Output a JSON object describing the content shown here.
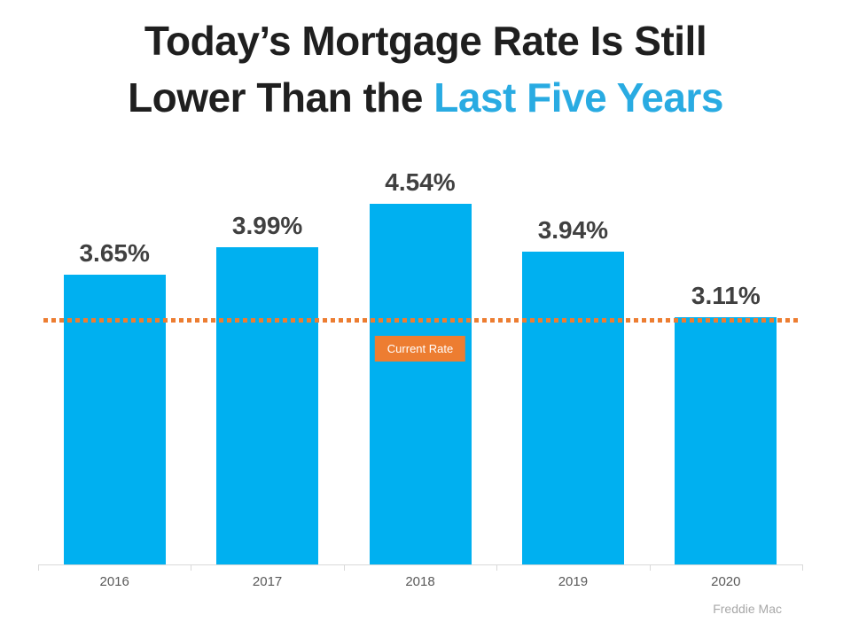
{
  "title": {
    "line1": "Today’s Mortgage Rate Is Still",
    "line2_prefix": "Lower Than the ",
    "line2_accent": "Last Five Years"
  },
  "chart_data": {
    "type": "bar",
    "title": "Today’s Mortgage Rate Is Still Lower Than the Last Five Years",
    "categories": [
      "2016",
      "2017",
      "2018",
      "2019",
      "2020"
    ],
    "values": [
      3.65,
      3.99,
      4.54,
      3.94,
      3.11
    ],
    "value_labels": [
      "3.65%",
      "3.99%",
      "4.54%",
      "3.94%",
      "3.11%"
    ],
    "xlabel": "",
    "ylabel": "",
    "ylim": [
      0,
      5
    ],
    "grid": false,
    "legend": "none",
    "bar_color": "#00B0F0",
    "reference_line": {
      "value": 3.11,
      "label": "Current Rate",
      "style": "dotted",
      "color": "#ED7D31"
    },
    "source": "Freddie Mac"
  },
  "annotation": {
    "current_rate_label": "Current Rate"
  },
  "source_label": "Freddie Mac",
  "colors": {
    "bar": "#00B0F0",
    "title_accent": "#29ABE2",
    "reference_orange": "#ED7D31",
    "value_label": "#404040",
    "year_label": "#595959",
    "axis": "#D9D9D9",
    "source_text": "#A8A8A8"
  }
}
